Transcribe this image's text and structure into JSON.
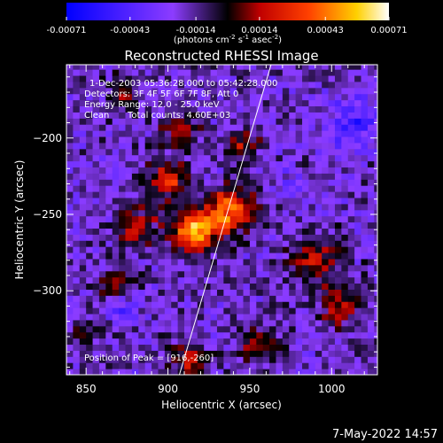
{
  "chart_data": {
    "type": "heatmap",
    "title": "Reconstructed RHESSI Image",
    "xlabel": "Heliocentric X (arcsec)",
    "ylabel": "Heliocentric Y (arcsec)",
    "xlim": [
      838,
      1028
    ],
    "ylim": [
      -355,
      -152
    ],
    "x_ticks": [
      850,
      900,
      950,
      1000
    ],
    "y_ticks": [
      -200,
      -250,
      -300
    ],
    "colorbar": {
      "ticks": [
        "-0.00071",
        "-0.00043",
        "-0.00014",
        "0.00014",
        "0.00043",
        "0.00071"
      ],
      "range": [
        -0.00071,
        0.00071
      ],
      "units_base": "(photons cm",
      "units_exp1": "-2",
      "units_mid": " s",
      "units_exp2": "-1",
      "units_mid2": " asec",
      "units_exp3": "-2",
      "units_end": ")"
    },
    "annotations": {
      "time_range": "1-Dec-2003 05:36:28.000 to 05:42:28.000",
      "detectors": "Detectors: 3F 4F 5F 6F 7F 8F, Att 0",
      "energy": "Energy Range: 12.0 - 25.0 keV",
      "clean_label": "Clean",
      "total_counts": "Total counts: 4.60E+03",
      "peak": "Position of Peak = [916,-260]"
    },
    "peak": [
      916,
      -260
    ],
    "limb_line": [
      [
        907,
        -355
      ],
      [
        963,
        -152
      ]
    ],
    "sources": [
      {
        "x": 916,
        "y": -260,
        "amp": 1.0,
        "sigma": 9
      },
      {
        "x": 938,
        "y": -247,
        "amp": 0.75,
        "sigma": 10
      },
      {
        "x": 900,
        "y": -228,
        "amp": 0.5,
        "sigma": 9
      },
      {
        "x": 880,
        "y": -258,
        "amp": 0.45,
        "sigma": 9
      },
      {
        "x": 908,
        "y": -195,
        "amp": 0.35,
        "sigma": 8
      },
      {
        "x": 945,
        "y": -205,
        "amp": 0.35,
        "sigma": 8
      },
      {
        "x": 870,
        "y": -295,
        "amp": 0.35,
        "sigma": 8
      },
      {
        "x": 990,
        "y": -280,
        "amp": 0.45,
        "sigma": 10
      },
      {
        "x": 1005,
        "y": -310,
        "amp": 0.4,
        "sigma": 9
      },
      {
        "x": 955,
        "y": -335,
        "amp": 0.35,
        "sigma": 9
      },
      {
        "x": 912,
        "y": -345,
        "amp": 0.4,
        "sigma": 8
      },
      {
        "x": 872,
        "y": -170,
        "amp": 0.3,
        "sigma": 7
      },
      {
        "x": 850,
        "y": -330,
        "amp": 0.25,
        "sigma": 7
      }
    ],
    "negatives": [
      {
        "x": 1015,
        "y": -190,
        "amp": -0.4,
        "sigma": 12
      },
      {
        "x": 875,
        "y": -310,
        "amp": -0.3,
        "sigma": 7
      },
      {
        "x": 975,
        "y": -230,
        "amp": -0.15,
        "sigma": 8
      }
    ]
  },
  "footer": {
    "date": "7-May-2022 14:57"
  }
}
